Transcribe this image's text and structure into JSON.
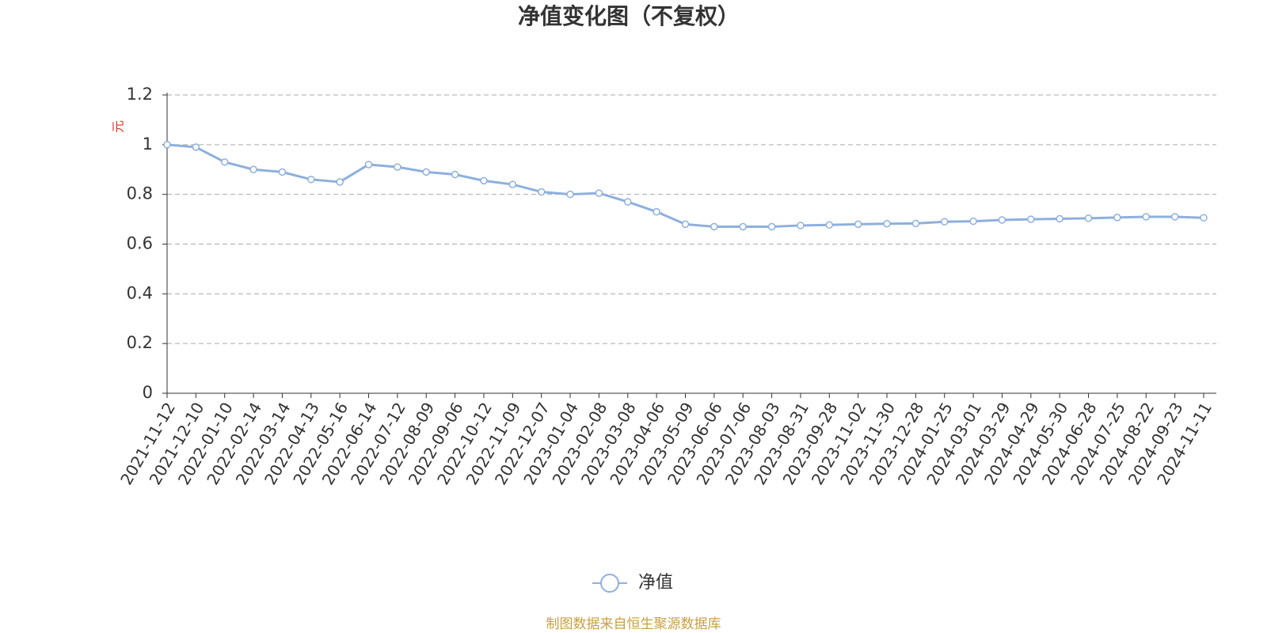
{
  "chart_data": {
    "type": "line",
    "title": "净值变化图（不复权）",
    "y_label": "元",
    "footer": "制图数据来自恒生聚源数据库",
    "categories": [
      "2021-11-12",
      "2021-12-10",
      "2022-01-10",
      "2022-02-14",
      "2022-03-14",
      "2022-04-13",
      "2022-05-16",
      "2022-06-14",
      "2022-07-12",
      "2022-08-09",
      "2022-09-06",
      "2022-10-12",
      "2022-11-09",
      "2022-12-07",
      "2023-01-04",
      "2023-02-08",
      "2023-03-08",
      "2023-04-06",
      "2023-05-09",
      "2023-06-06",
      "2023-07-06",
      "2023-08-03",
      "2023-08-31",
      "2023-09-28",
      "2023-11-02",
      "2023-11-30",
      "2023-12-28",
      "2024-01-25",
      "2024-03-01",
      "2024-03-29",
      "2024-04-29",
      "2024-05-30",
      "2024-06-28",
      "2024-07-25",
      "2024-08-22",
      "2024-09-23",
      "2024-11-11"
    ],
    "series": [
      {
        "name": "净值",
        "color": "#8eb0dc",
        "values": [
          1.0,
          0.99,
          0.93,
          0.9,
          0.89,
          0.86,
          0.85,
          0.92,
          0.91,
          0.89,
          0.88,
          0.855,
          0.84,
          0.81,
          0.8,
          0.805,
          0.77,
          0.73,
          0.68,
          0.67,
          0.67,
          0.67,
          0.675,
          0.677,
          0.68,
          0.682,
          0.683,
          0.69,
          0.692,
          0.697,
          0.7,
          0.702,
          0.704,
          0.707,
          0.71,
          0.71,
          0.706
        ]
      }
    ],
    "ylim": [
      0,
      1.2
    ],
    "yticks": [
      0,
      0.2,
      0.4,
      0.6,
      0.8,
      1,
      1.2
    ],
    "grid": true
  }
}
